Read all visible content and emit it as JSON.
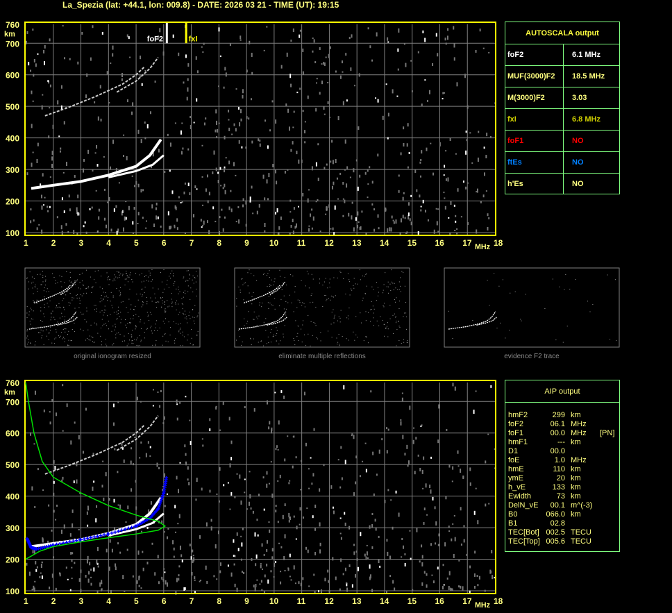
{
  "header": {
    "title": "La_Spezia (lat: +44.1, lon: 009.8) - DATE: 2026 03 21 - TIME (UT): 19:15"
  },
  "colors": {
    "axis": "#ffff00",
    "grid": "#808080",
    "panel_border": "#80ff80",
    "o_trace": "#ffffff",
    "aip_profile_points": "#0000ff",
    "aip_density_profile": "#00ff00",
    "fxI_marker": "#ffff00",
    "foF1": "#ff0000",
    "ftEs": "#0080ff"
  },
  "autoscala": {
    "title": "AUTOSCALA output",
    "rows": [
      {
        "key": "foF2",
        "value": "6.1 MHz",
        "color": "#ffffff"
      },
      {
        "key": "MUF(3000)F2",
        "value": "18.5 MHz",
        "color": "#ffff80"
      },
      {
        "key": "M(3000)F2",
        "value": "3.03",
        "color": "#ffff80"
      },
      {
        "key": "fxI",
        "value": "6.8 MHz",
        "color": "#d0d000"
      },
      {
        "key": "foF1",
        "value": "NO",
        "color": "#ff0000"
      },
      {
        "key": "ftEs",
        "value": "NO",
        "color": "#0080ff"
      },
      {
        "key": "h'Es",
        "value": "NO",
        "color": "#ffff80"
      }
    ]
  },
  "aip": {
    "title": "AIP output",
    "rows": [
      [
        "hmF2",
        "299",
        "km",
        ""
      ],
      [
        "foF2",
        "06.1",
        "MHz",
        ""
      ],
      [
        "foF1",
        "00.0",
        "MHz",
        "[PN]"
      ],
      [
        "hmF1",
        "---",
        "km",
        ""
      ],
      [
        "D1",
        "00.0",
        "",
        ""
      ],
      [
        "foE",
        "1.0",
        "MHz",
        ""
      ],
      [
        "hmE",
        "110",
        "km",
        ""
      ],
      [
        "ymE",
        "20",
        "km",
        ""
      ],
      [
        "h_vE",
        "133",
        "km",
        ""
      ],
      [
        "Ewidth",
        "73",
        "km",
        ""
      ],
      [
        "DelN_vE",
        "00.1",
        "m^(-3)",
        ""
      ],
      [
        "B0",
        "066.0",
        "km",
        ""
      ],
      [
        "B1",
        "02.8",
        "",
        ""
      ],
      [
        "TEC[Bot]",
        "002.5",
        "TECU",
        ""
      ],
      [
        "TEC[Top]",
        "005.6",
        "TECU",
        ""
      ]
    ]
  },
  "thumbnails": [
    {
      "caption": "original ionogram resized"
    },
    {
      "caption": "eliminate multiple reflections"
    },
    {
      "caption": "evidence F2 trace"
    }
  ],
  "chart_data": [
    {
      "type": "scatter",
      "title": "",
      "xlabel": "MHz",
      "ylabel": "km",
      "xlim": [
        1,
        18
      ],
      "ylim": [
        100,
        760
      ],
      "xticks": [
        "1",
        "2",
        "3",
        "4",
        "5",
        "6",
        "7",
        "8",
        "9",
        "10",
        "11",
        "12",
        "13",
        "14",
        "15",
        "16",
        "17",
        "18"
      ],
      "yticks": [
        "100",
        "200",
        "300",
        "400",
        "500",
        "600",
        "700",
        "760"
      ],
      "grid": true,
      "markers": [
        {
          "label": "foF2",
          "x": 6.1
        },
        {
          "label": "fxI",
          "x": 6.8
        }
      ],
      "series": [
        {
          "role": "o_trace",
          "x": [
            1.2,
            2,
            3,
            4,
            5,
            5.5,
            5.9
          ],
          "y": [
            240,
            250,
            262,
            282,
            310,
            345,
            395
          ]
        },
        {
          "role": "x_trace",
          "x": [
            4,
            5,
            5.6,
            6
          ],
          "y": [
            275,
            295,
            315,
            345
          ]
        },
        {
          "role": "second_hop_o",
          "x": [
            1.7,
            2.5,
            3.5,
            4.5,
            5,
            5.3
          ],
          "y": [
            470,
            495,
            530,
            570,
            600,
            625
          ]
        },
        {
          "role": "second_hop_x",
          "x": [
            4.3,
            5,
            5.5,
            5.8
          ],
          "y": [
            545,
            580,
            620,
            655
          ]
        }
      ]
    },
    {
      "type": "scatter",
      "title": "",
      "xlabel": "MHz",
      "ylabel": "km",
      "xlim": [
        1,
        18
      ],
      "ylim": [
        100,
        760
      ],
      "xticks": [
        "1",
        "2",
        "3",
        "4",
        "5",
        "6",
        "7",
        "8",
        "9",
        "10",
        "11",
        "12",
        "13",
        "14",
        "15",
        "16",
        "17",
        "18"
      ],
      "yticks": [
        "100",
        "200",
        "300",
        "400",
        "500",
        "600",
        "700",
        "760"
      ],
      "grid": true,
      "series": [
        {
          "role": "o_trace",
          "x": [
            1.2,
            2,
            3,
            4,
            5,
            5.5,
            5.9
          ],
          "y": [
            240,
            250,
            262,
            282,
            310,
            345,
            395
          ]
        },
        {
          "role": "x_trace",
          "x": [
            4,
            5,
            5.6,
            6
          ],
          "y": [
            275,
            295,
            315,
            345
          ]
        },
        {
          "role": "second_hop_o",
          "x": [
            1.7,
            2.5,
            3.5,
            4.5,
            5,
            5.3
          ],
          "y": [
            470,
            495,
            530,
            570,
            600,
            625
          ]
        },
        {
          "role": "second_hop_x",
          "x": [
            4.3,
            5,
            5.5,
            5.8
          ],
          "y": [
            545,
            580,
            620,
            655
          ]
        },
        {
          "role": "aip_points",
          "x": [
            1.05,
            1.2,
            1.4,
            2,
            3,
            4,
            5,
            5.5,
            5.8,
            6.0,
            6.1
          ],
          "y": [
            265,
            237,
            232,
            245,
            262,
            280,
            305,
            330,
            360,
            410,
            460
          ]
        },
        {
          "role": "density_profile",
          "x": [
            1,
            1.5,
            2,
            3,
            4,
            5,
            5.8,
            6.05,
            5.8,
            5,
            4,
            3,
            2,
            1.6,
            1.3,
            1.1,
            1.0
          ],
          "y": [
            200,
            225,
            240,
            255,
            268,
            280,
            292,
            305,
            320,
            340,
            370,
            410,
            460,
            510,
            600,
            700,
            760
          ]
        }
      ]
    }
  ]
}
